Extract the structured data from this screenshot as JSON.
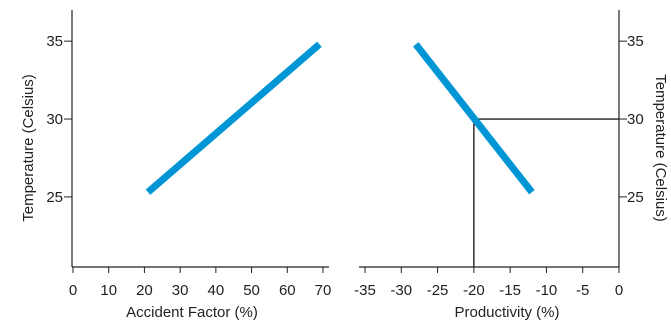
{
  "chart_data": [
    {
      "type": "line",
      "xlabel": "Accident Factor (%)",
      "ylabel": "Temperature (Celsius)",
      "xlim": [
        0,
        70
      ],
      "ylim": [
        20.5,
        37
      ],
      "xticks": [
        0,
        10,
        20,
        30,
        40,
        50,
        60,
        70
      ],
      "yticks": [
        25,
        30,
        35
      ],
      "color": "#0096d6",
      "series": [
        {
          "x": [
            21,
            69
          ],
          "y": [
            25.3,
            34.8
          ]
        }
      ]
    },
    {
      "type": "line",
      "xlabel": "Productivity (%)",
      "ylabel": "Temperature (Celsius)",
      "xlim": [
        -35,
        0
      ],
      "ylim": [
        20.5,
        37
      ],
      "xticks": [
        -35,
        -30,
        -25,
        -20,
        -15,
        -10,
        -5,
        0
      ],
      "yticks": [
        25,
        30,
        35
      ],
      "color": "#0096d6",
      "series": [
        {
          "x": [
            -28,
            -12
          ],
          "y": [
            34.8,
            25.3
          ]
        }
      ],
      "reference_point": {
        "x": -20,
        "y": 30
      }
    }
  ]
}
